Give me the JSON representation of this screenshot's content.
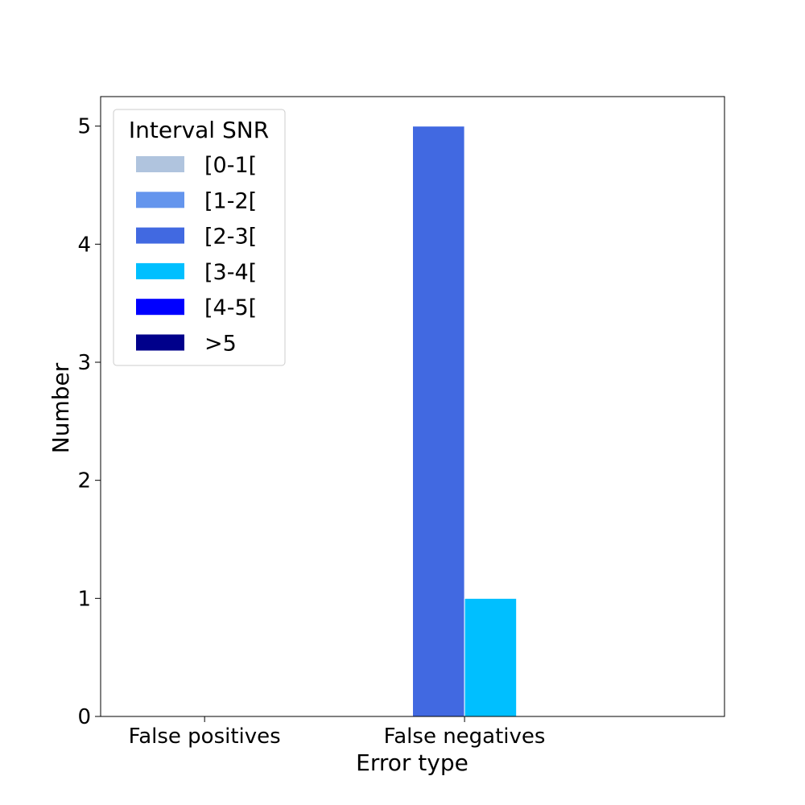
{
  "chart_data": {
    "type": "bar",
    "xlabel": "Error type",
    "ylabel": "Number",
    "categories": [
      "False positives",
      "False negatives"
    ],
    "ylim": [
      0,
      5.25
    ],
    "yticks": [
      0,
      1,
      2,
      3,
      4,
      5
    ],
    "grid": false,
    "legend": {
      "title": "Interval SNR",
      "placement": "top-left"
    },
    "series": [
      {
        "name": "[0-1[",
        "color": "#b0c4de",
        "values": [
          0,
          0
        ]
      },
      {
        "name": "[1-2[",
        "color": "#6495ed",
        "values": [
          0,
          0
        ]
      },
      {
        "name": "[2-3[",
        "color": "#4169e1",
        "values": [
          0,
          5
        ]
      },
      {
        "name": "[3-4[",
        "color": "#00bfff",
        "values": [
          0,
          1
        ]
      },
      {
        "name": "[4-5[",
        "color": "#0000ff",
        "values": [
          0,
          0
        ]
      },
      {
        "name": ">5",
        "color": "#00008b",
        "values": [
          0,
          0
        ]
      }
    ]
  }
}
